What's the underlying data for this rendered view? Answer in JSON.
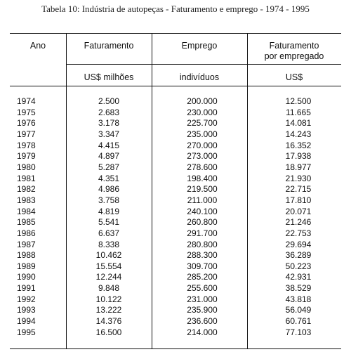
{
  "title": "Tabela 10: Indústria de autopeças - Faturamento e emprego - 1974 - 1995",
  "headers": {
    "year": "Ano",
    "revenue": "Faturamento",
    "employment": "Emprego",
    "revenue_per_employee_1": "Faturamento",
    "revenue_per_employee_2": "por empregado"
  },
  "units": {
    "revenue": "US$ milhões",
    "employment": "indivíduos",
    "revenue_per_employee": "US$"
  },
  "rows": [
    {
      "year": "1974",
      "revenue": "2.500",
      "employment": "200.000",
      "per_employee": "12.500"
    },
    {
      "year": "1975",
      "revenue": "2.683",
      "employment": "230.000",
      "per_employee": "11.665"
    },
    {
      "year": "1976",
      "revenue": "3.178",
      "employment": "225.700",
      "per_employee": "14.081"
    },
    {
      "year": "1977",
      "revenue": "3.347",
      "employment": "235.000",
      "per_employee": "14.243"
    },
    {
      "year": "1978",
      "revenue": "4.415",
      "employment": "270.000",
      "per_employee": "16.352"
    },
    {
      "year": "1979",
      "revenue": "4.897",
      "employment": "273.000",
      "per_employee": "17.938"
    },
    {
      "year": "1980",
      "revenue": "5.287",
      "employment": "278.600",
      "per_employee": "18.977"
    },
    {
      "year": "1981",
      "revenue": "4.351",
      "employment": "198.400",
      "per_employee": "21.930"
    },
    {
      "year": "1982",
      "revenue": "4.986",
      "employment": "219.500",
      "per_employee": "22.715"
    },
    {
      "year": "1983",
      "revenue": "3.758",
      "employment": "211.000",
      "per_employee": "17.810"
    },
    {
      "year": "1984",
      "revenue": "4.819",
      "employment": "240.100",
      "per_employee": "20.071"
    },
    {
      "year": "1985",
      "revenue": "5.541",
      "employment": "260.800",
      "per_employee": "21.246"
    },
    {
      "year": "1986",
      "revenue": "6.637",
      "employment": "291.700",
      "per_employee": "22.753"
    },
    {
      "year": "1987",
      "revenue": "8.338",
      "employment": "280.800",
      "per_employee": "29.694"
    },
    {
      "year": "1988",
      "revenue": "10.462",
      "employment": "288.300",
      "per_employee": "36.289"
    },
    {
      "year": "1989",
      "revenue": "15.554",
      "employment": "309.700",
      "per_employee": "50.223"
    },
    {
      "year": "1990",
      "revenue": "12.244",
      "employment": "285.200",
      "per_employee": "42.931"
    },
    {
      "year": "1991",
      "revenue": "9.848",
      "employment": "255.600",
      "per_employee": "38.529"
    },
    {
      "year": "1992",
      "revenue": "10.122",
      "employment": "231.000",
      "per_employee": "43.818"
    },
    {
      "year": "1993",
      "revenue": "13.222",
      "employment": "235.900",
      "per_employee": "56.049"
    },
    {
      "year": "1994",
      "revenue": "14.376",
      "employment": "236.600",
      "per_employee": "60.761"
    },
    {
      "year": "1995",
      "revenue": "16.500",
      "employment": "214.000",
      "per_employee": "77.103"
    }
  ]
}
